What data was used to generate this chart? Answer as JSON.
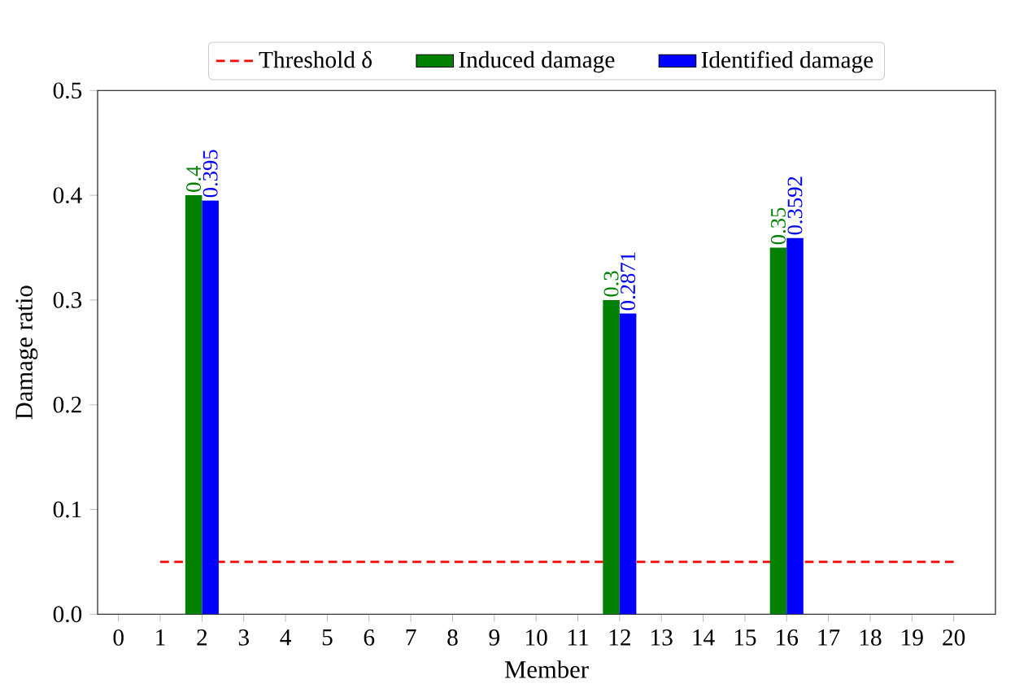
{
  "chart_data": {
    "type": "bar",
    "xlabel": "Member",
    "ylabel": "Damage ratio",
    "x": [
      1,
      2,
      3,
      4,
      5,
      6,
      7,
      8,
      9,
      10,
      11,
      12,
      13,
      14,
      15,
      16,
      17,
      18,
      19,
      20
    ],
    "series": [
      {
        "name": "Threshold δ",
        "type": "line",
        "line_style": "dashed",
        "color": "#ff0000",
        "x": [
          1,
          20
        ],
        "values": [
          0.05,
          0.05
        ]
      },
      {
        "name": "Induced damage",
        "color": "#008000",
        "values": [
          0,
          0.4,
          0,
          0,
          0,
          0,
          0,
          0,
          0,
          0,
          0,
          0.3,
          0,
          0,
          0,
          0.35,
          0,
          0,
          0,
          0
        ],
        "value_labels": [
          null,
          "0.4",
          null,
          null,
          null,
          null,
          null,
          null,
          null,
          null,
          null,
          "0.3",
          null,
          null,
          null,
          "0.35",
          null,
          null,
          null,
          null
        ]
      },
      {
        "name": "Identified damage",
        "color": "#0000ff",
        "values": [
          0,
          0.395,
          0,
          0,
          0,
          0,
          0,
          0,
          0,
          0,
          0,
          0.2871,
          0,
          0,
          0,
          0.3592,
          0,
          0,
          0,
          0
        ],
        "value_labels": [
          null,
          "0.395",
          null,
          null,
          null,
          null,
          null,
          null,
          null,
          null,
          null,
          "0.2871",
          null,
          null,
          null,
          "0.3592",
          null,
          null,
          null,
          null
        ]
      }
    ],
    "xlim": [
      -0.5,
      21
    ],
    "ylim": [
      0,
      0.5
    ],
    "xticks": [
      0,
      1,
      2,
      3,
      4,
      5,
      6,
      7,
      8,
      9,
      10,
      11,
      12,
      13,
      14,
      15,
      16,
      17,
      18,
      19,
      20
    ],
    "yticks": [
      {
        "value": 0,
        "label": "0.0"
      },
      {
        "value": 0.1,
        "label": "0.1"
      },
      {
        "value": 0.2,
        "label": "0.2"
      },
      {
        "value": 0.3,
        "label": "0.3"
      },
      {
        "value": 0.4,
        "label": "0.4"
      },
      {
        "value": 0.5,
        "label": "0.5"
      }
    ],
    "grid": false,
    "legend": "top"
  }
}
